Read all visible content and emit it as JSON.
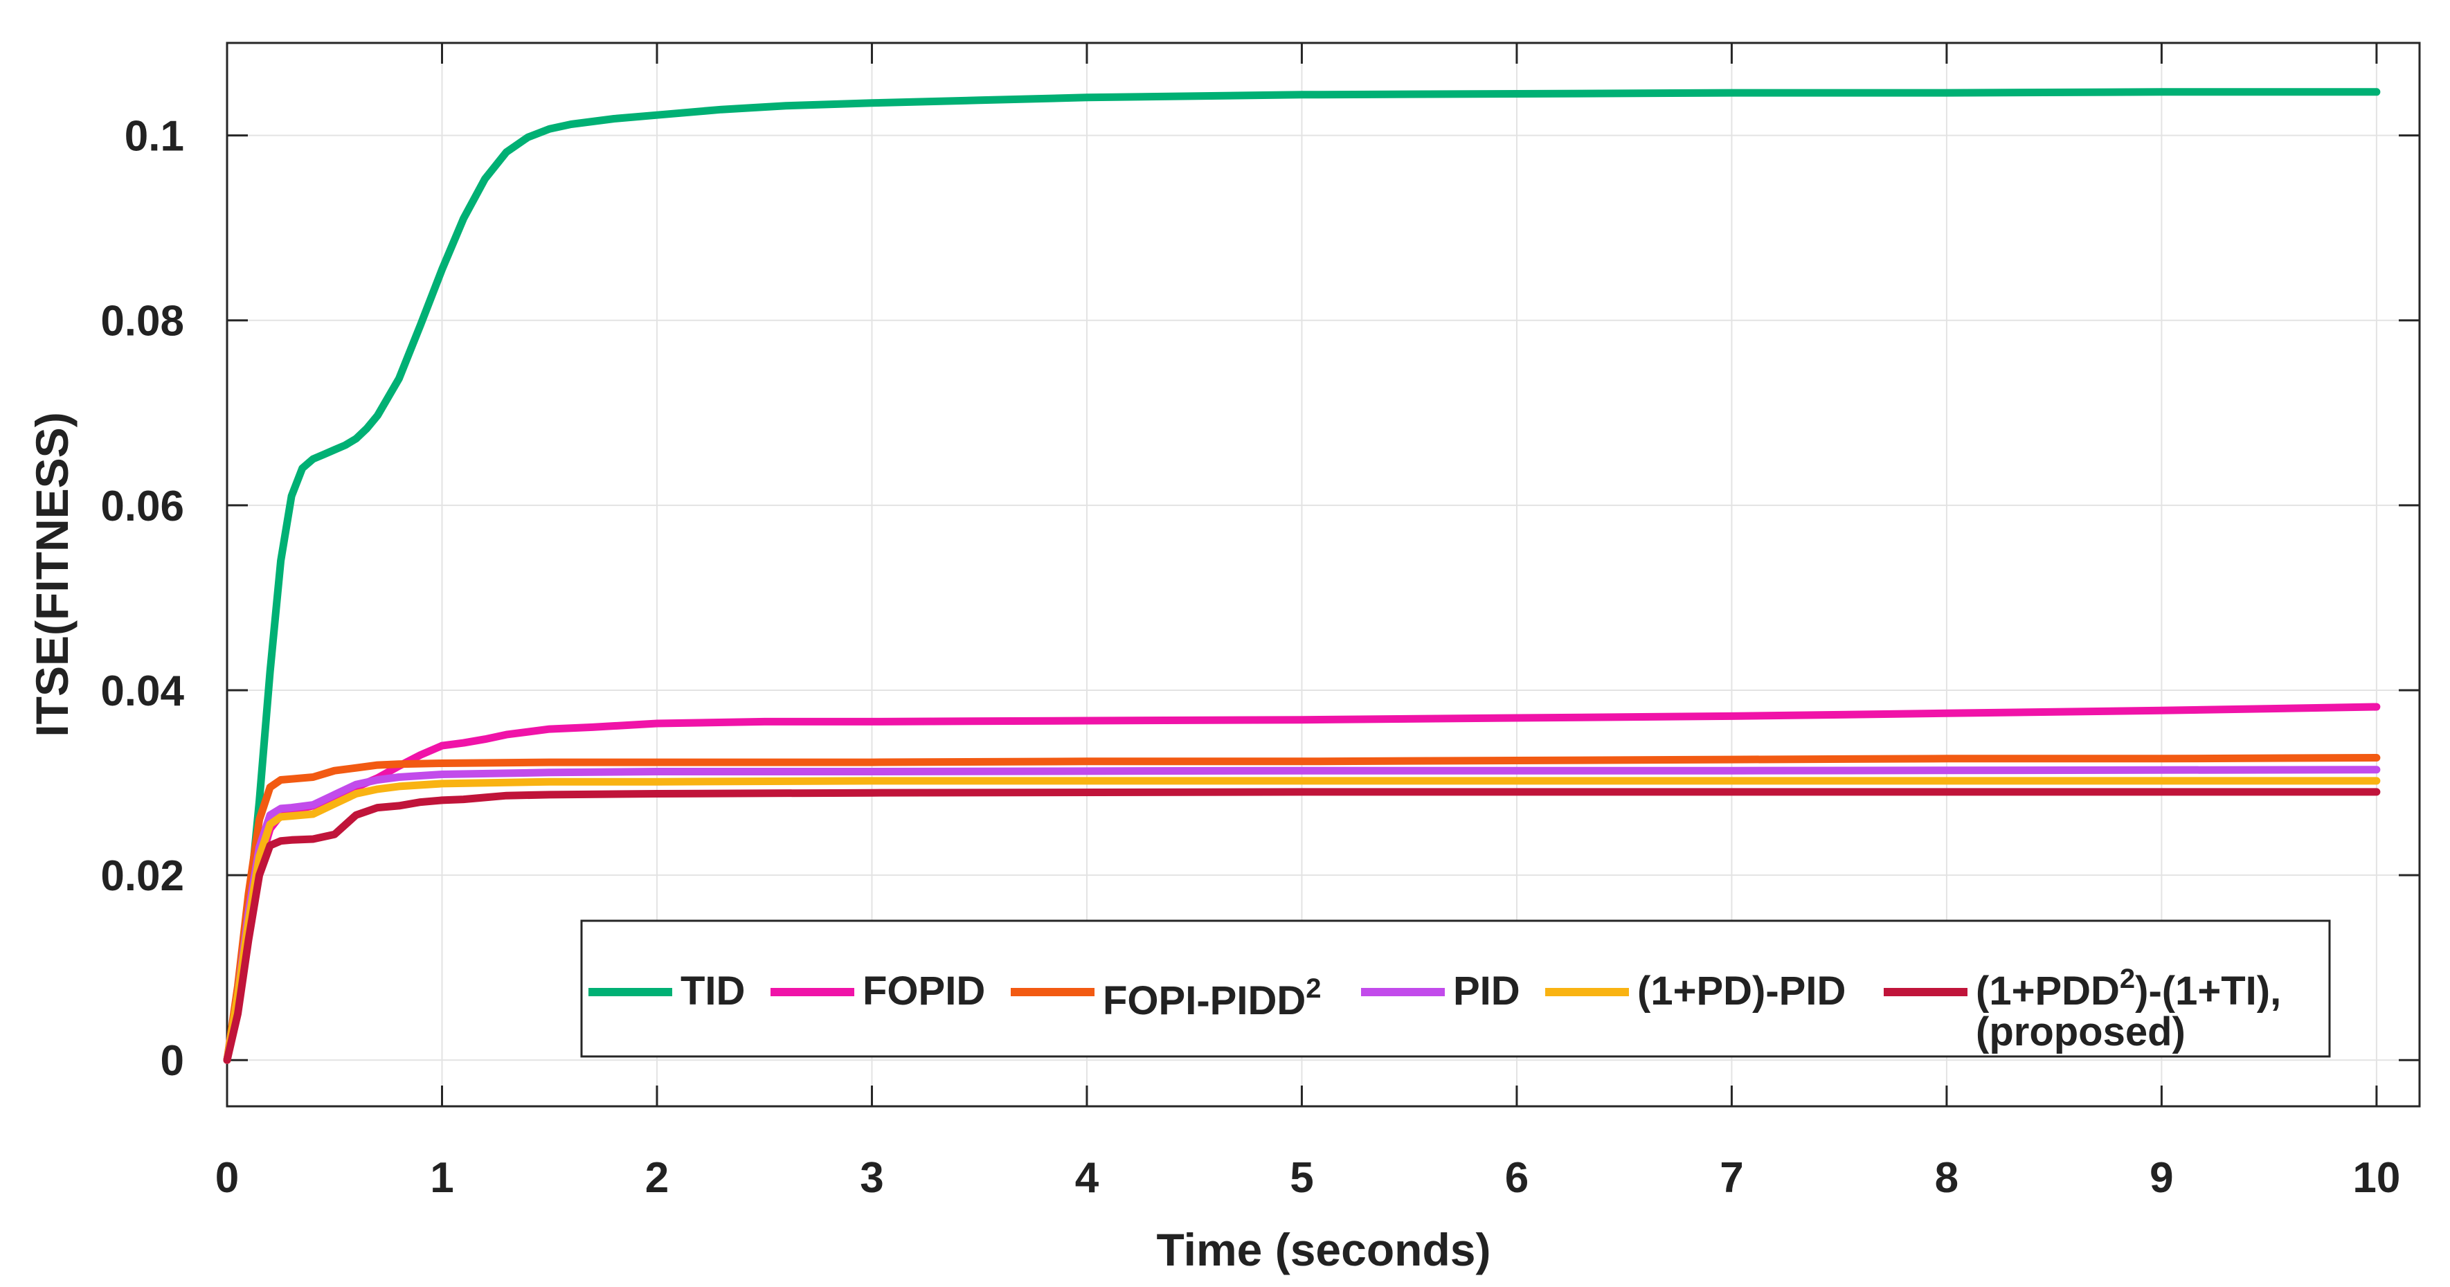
{
  "chart_data": {
    "type": "line",
    "title": "",
    "xlabel": "Time (seconds)",
    "ylabel": "ITSE(FITNESS)",
    "xlim": [
      0,
      10.2
    ],
    "ylim": [
      -0.005,
      0.11
    ],
    "xticks": [
      0,
      1,
      2,
      3,
      4,
      5,
      6,
      7,
      8,
      9,
      10
    ],
    "xtick_labels": [
      "0",
      "1",
      "2",
      "3",
      "4",
      "5",
      "6",
      "7",
      "8",
      "9",
      "10"
    ],
    "yticks": [
      0,
      0.02,
      0.04,
      0.06,
      0.08,
      0.1
    ],
    "ytick_labels": [
      "0",
      "0.02",
      "0.04",
      "0.06",
      "0.08",
      "0.1"
    ],
    "grid": true,
    "legend_position": "bottom-right",
    "legend_proposed_suffix": "(proposed)",
    "series": [
      {
        "name": "TID",
        "legend_label": "TID",
        "color": "#00B074",
        "x": [
          0,
          0.05,
          0.1,
          0.15,
          0.2,
          0.25,
          0.3,
          0.35,
          0.4,
          0.45,
          0.5,
          0.55,
          0.6,
          0.65,
          0.7,
          0.8,
          0.9,
          1.0,
          1.1,
          1.2,
          1.3,
          1.4,
          1.5,
          1.6,
          1.8,
          2.0,
          2.3,
          2.6,
          3.0,
          3.5,
          4.0,
          5.0,
          6.0,
          7.0,
          8.0,
          9.0,
          10.0
        ],
        "y": [
          0,
          0.006,
          0.016,
          0.028,
          0.042,
          0.054,
          0.061,
          0.064,
          0.065,
          0.0655,
          0.066,
          0.0665,
          0.0672,
          0.0683,
          0.0697,
          0.0737,
          0.0795,
          0.0855,
          0.091,
          0.0953,
          0.0982,
          0.0998,
          0.1007,
          0.1012,
          0.1018,
          0.1022,
          0.1028,
          0.1032,
          0.1035,
          0.1038,
          0.1041,
          0.1044,
          0.1045,
          0.1046,
          0.1046,
          0.1047,
          0.1047
        ]
      },
      {
        "name": "FOPID",
        "legend_label": "FOPID",
        "color": "#F013A8",
        "x": [
          0,
          0.05,
          0.1,
          0.15,
          0.2,
          0.25,
          0.3,
          0.4,
          0.5,
          0.6,
          0.7,
          0.8,
          0.9,
          1.0,
          1.1,
          1.2,
          1.3,
          1.5,
          1.7,
          2.0,
          2.5,
          3.0,
          4.0,
          5.0,
          6.0,
          7.0,
          8.0,
          9.0,
          10.0
        ],
        "y": [
          0,
          0.006,
          0.014,
          0.021,
          0.025,
          0.0265,
          0.027,
          0.0275,
          0.0285,
          0.0295,
          0.0305,
          0.0318,
          0.033,
          0.034,
          0.0343,
          0.0347,
          0.0352,
          0.0358,
          0.036,
          0.0364,
          0.0366,
          0.0366,
          0.0367,
          0.0368,
          0.037,
          0.0372,
          0.0375,
          0.0378,
          0.0382
        ]
      },
      {
        "name": "FOPI-PIDD2",
        "legend_label": "FOPI-PIDD",
        "legend_sup": "2",
        "color": "#F25A12",
        "x": [
          0,
          0.05,
          0.1,
          0.15,
          0.2,
          0.25,
          0.3,
          0.4,
          0.5,
          0.6,
          0.7,
          0.8,
          1.0,
          1.5,
          2.0,
          3.0,
          4.0,
          5.0,
          6.0,
          7.0,
          8.0,
          9.0,
          10.0
        ],
        "y": [
          0,
          0.008,
          0.018,
          0.026,
          0.0295,
          0.0303,
          0.0304,
          0.0306,
          0.0313,
          0.0316,
          0.0319,
          0.032,
          0.0321,
          0.0322,
          0.0322,
          0.0322,
          0.0323,
          0.0323,
          0.0324,
          0.0325,
          0.0326,
          0.0326,
          0.0327
        ]
      },
      {
        "name": "PID",
        "legend_label": "PID",
        "color": "#C24BEB",
        "x": [
          0,
          0.05,
          0.1,
          0.15,
          0.2,
          0.25,
          0.3,
          0.4,
          0.5,
          0.6,
          0.7,
          0.8,
          1.0,
          1.5,
          2.0,
          3.0,
          5.0,
          7.0,
          10.0
        ],
        "y": [
          0,
          0.007,
          0.016,
          0.023,
          0.0265,
          0.0272,
          0.0273,
          0.0276,
          0.0287,
          0.0298,
          0.0303,
          0.0306,
          0.0309,
          0.0311,
          0.0312,
          0.0312,
          0.0313,
          0.0313,
          0.0314
        ]
      },
      {
        "name": "(1+PD)-PID",
        "legend_label": "(1+PD)-PID",
        "color": "#F9B312",
        "x": [
          0,
          0.05,
          0.1,
          0.15,
          0.2,
          0.25,
          0.3,
          0.4,
          0.5,
          0.6,
          0.7,
          0.8,
          1.0,
          1.5,
          2.0,
          3.0,
          5.0,
          7.0,
          10.0
        ],
        "y": [
          0,
          0.007,
          0.015,
          0.022,
          0.0255,
          0.0263,
          0.0264,
          0.0266,
          0.0277,
          0.0288,
          0.0293,
          0.0296,
          0.0299,
          0.0301,
          0.0301,
          0.0302,
          0.0302,
          0.0302,
          0.0302
        ]
      },
      {
        "name": "(1+PDD2)-(1+TI), (proposed)",
        "legend_label": "(1+PDD",
        "legend_sup": "2",
        "legend_suffix": ")-(1+TI),",
        "color": "#C0143A",
        "x": [
          0,
          0.05,
          0.1,
          0.15,
          0.2,
          0.25,
          0.3,
          0.4,
          0.5,
          0.6,
          0.7,
          0.8,
          0.9,
          1.0,
          1.1,
          1.2,
          1.3,
          1.5,
          2.0,
          3.0,
          5.0,
          7.0,
          10.0
        ],
        "y": [
          0,
          0.005,
          0.013,
          0.02,
          0.0232,
          0.0237,
          0.0238,
          0.0239,
          0.0244,
          0.0265,
          0.0273,
          0.0275,
          0.0279,
          0.0281,
          0.0282,
          0.0284,
          0.0286,
          0.0287,
          0.0288,
          0.0289,
          0.029,
          0.029,
          0.029
        ]
      }
    ]
  }
}
